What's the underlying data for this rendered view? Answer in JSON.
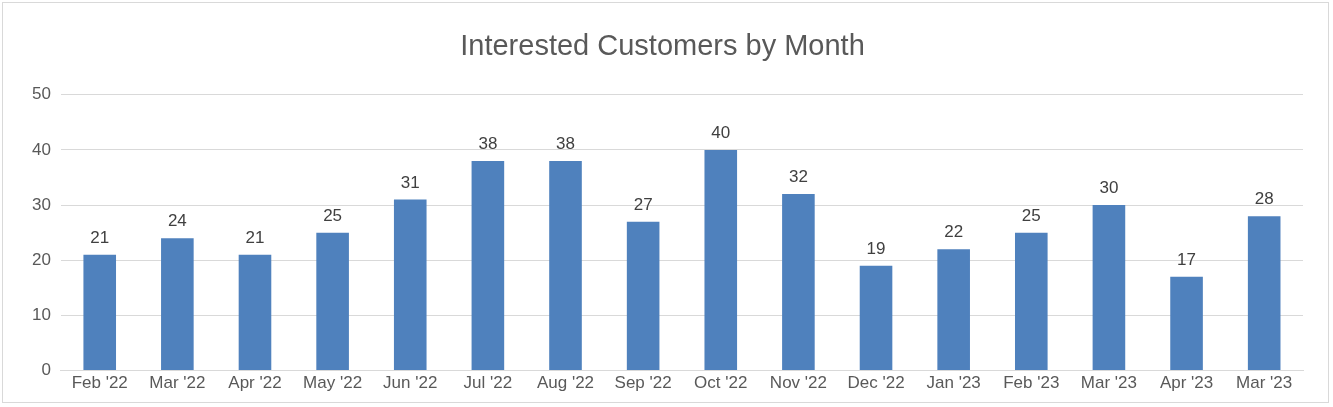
{
  "chart_data": {
    "type": "bar",
    "title": "Interested Customers by Month",
    "categories": [
      "Feb '22",
      "Mar '22",
      "Apr '22",
      "May '22",
      "Jun '22",
      "Jul '22",
      "Aug '22",
      "Sep '22",
      "Oct '22",
      "Nov '22",
      "Dec '22",
      "Jan '23",
      "Feb '23",
      "Mar '23",
      "Apr '23",
      "Mar '23"
    ],
    "values": [
      21,
      24,
      21,
      25,
      31,
      38,
      38,
      27,
      40,
      32,
      19,
      22,
      25,
      30,
      17,
      28
    ],
    "color": "#4f81bd",
    "ylim": [
      0,
      50
    ],
    "yticks": [
      0,
      10,
      20,
      30,
      40,
      50
    ],
    "grid": "y",
    "data_labels": true
  }
}
